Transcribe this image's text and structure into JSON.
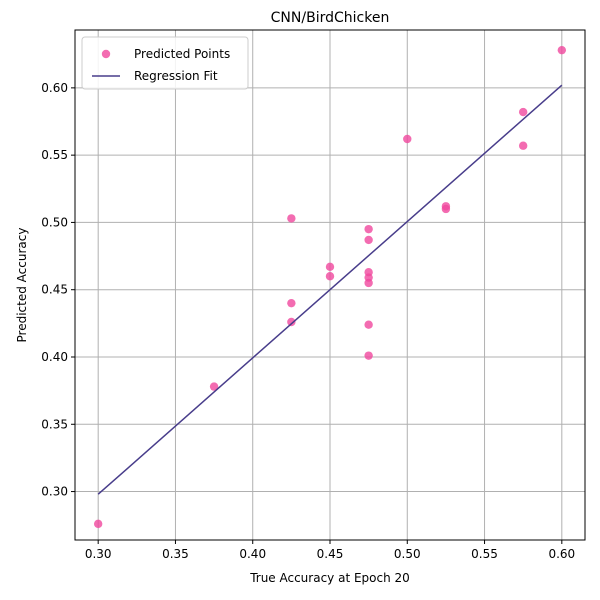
{
  "chart_data": {
    "type": "scatter",
    "title": "CNN/BirdChicken",
    "xlabel": "True Accuracy at Epoch 20",
    "ylabel": "Predicted Accuracy",
    "xlim": [
      0.285,
      0.615
    ],
    "ylim": [
      0.264,
      0.643
    ],
    "xticks": [
      "0.30",
      "0.35",
      "0.40",
      "0.45",
      "0.50",
      "0.55",
      "0.60"
    ],
    "yticks": [
      "0.30",
      "0.35",
      "0.40",
      "0.45",
      "0.50",
      "0.55",
      "0.60"
    ],
    "grid": true,
    "legend_position": "top-left",
    "series": [
      {
        "name": "Predicted Points",
        "kind": "points",
        "color": "#f0479e",
        "points": [
          [
            0.3,
            0.276
          ],
          [
            0.375,
            0.378
          ],
          [
            0.425,
            0.426
          ],
          [
            0.425,
            0.44
          ],
          [
            0.425,
            0.503
          ],
          [
            0.45,
            0.46
          ],
          [
            0.45,
            0.467
          ],
          [
            0.475,
            0.401
          ],
          [
            0.475,
            0.424
          ],
          [
            0.475,
            0.455
          ],
          [
            0.475,
            0.459
          ],
          [
            0.475,
            0.463
          ],
          [
            0.475,
            0.487
          ],
          [
            0.475,
            0.495
          ],
          [
            0.5,
            0.562
          ],
          [
            0.525,
            0.51
          ],
          [
            0.525,
            0.512
          ],
          [
            0.575,
            0.557
          ],
          [
            0.575,
            0.582
          ],
          [
            0.6,
            0.628
          ]
        ]
      },
      {
        "name": "Regression Fit",
        "kind": "line",
        "color": "#483d8b",
        "points": [
          [
            0.3,
            0.298
          ],
          [
            0.6,
            0.602
          ]
        ]
      }
    ]
  }
}
